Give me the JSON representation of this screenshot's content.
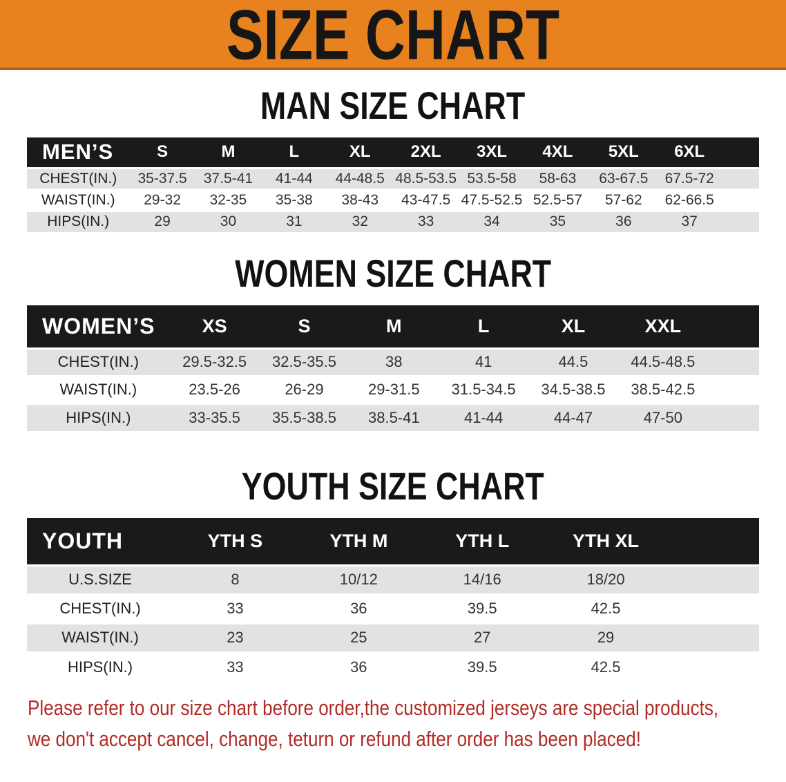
{
  "banner": {
    "title": "SIZE CHART"
  },
  "colors": {
    "accent_orange": "#E8821E",
    "header_bar_black": "#1A1A1A",
    "row_alt_gray": "#E2E2E2",
    "disclaimer_red": "#B12B25"
  },
  "sections": [
    {
      "key": "men",
      "heading": "MAN SIZE CHART",
      "header_label": "MEN’S",
      "columns": [
        "S",
        "M",
        "L",
        "XL",
        "2XL",
        "3XL",
        "4XL",
        "5XL",
        "6XL"
      ],
      "rows": [
        {
          "label": "CHEST(IN.)",
          "values": [
            "35-37.5",
            "37.5-41",
            "41-44",
            "44-48.5",
            "48.5-53.5",
            "53.5-58",
            "58-63",
            "63-67.5",
            "67.5-72"
          ]
        },
        {
          "label": "WAIST(IN.)",
          "values": [
            "29-32",
            "32-35",
            "35-38",
            "38-43",
            "43-47.5",
            "47.5-52.5",
            "52.5-57",
            "57-62",
            "62-66.5"
          ]
        },
        {
          "label": "HIPS(IN.)",
          "values": [
            "29",
            "30",
            "31",
            "32",
            "33",
            "34",
            "35",
            "36",
            "37"
          ]
        }
      ]
    },
    {
      "key": "women",
      "heading": "WOMEN SIZE CHART",
      "header_label": "WOMEN’S",
      "columns": [
        "XS",
        "S",
        "M",
        "L",
        "XL",
        "XXL"
      ],
      "rows": [
        {
          "label": "CHEST(IN.)",
          "values": [
            "29.5-32.5",
            "32.5-35.5",
            "38",
            "41",
            "44.5",
            "44.5-48.5"
          ]
        },
        {
          "label": "WAIST(IN.)",
          "values": [
            "23.5-26",
            "26-29",
            "29-31.5",
            "31.5-34.5",
            "34.5-38.5",
            "38.5-42.5"
          ]
        },
        {
          "label": "HIPS(IN.)",
          "values": [
            "33-35.5",
            "35.5-38.5",
            "38.5-41",
            "41-44",
            "44-47",
            "47-50"
          ]
        }
      ]
    },
    {
      "key": "youth",
      "heading": "YOUTH SIZE CHART",
      "header_label": "YOUTH",
      "columns": [
        "YTH S",
        "YTH M",
        "YTH L",
        "YTH XL"
      ],
      "rows": [
        {
          "label": "U.S.SIZE",
          "values": [
            "8",
            "10/12",
            "14/16",
            "18/20"
          ]
        },
        {
          "label": "CHEST(IN.)",
          "values": [
            "33",
            "36",
            "39.5",
            "42.5"
          ]
        },
        {
          "label": "WAIST(IN.)",
          "values": [
            "23",
            "25",
            "27",
            "29"
          ]
        },
        {
          "label": "HIPS(IN.)",
          "values": [
            "33",
            "36",
            "39.5",
            "42.5"
          ]
        }
      ]
    }
  ],
  "disclaimer": {
    "lines": [
      "Please refer to our size chart before order,the customized jerseys are special products,",
      "we don't accept cancel, change, teturn or refund after order has been placed!"
    ]
  }
}
